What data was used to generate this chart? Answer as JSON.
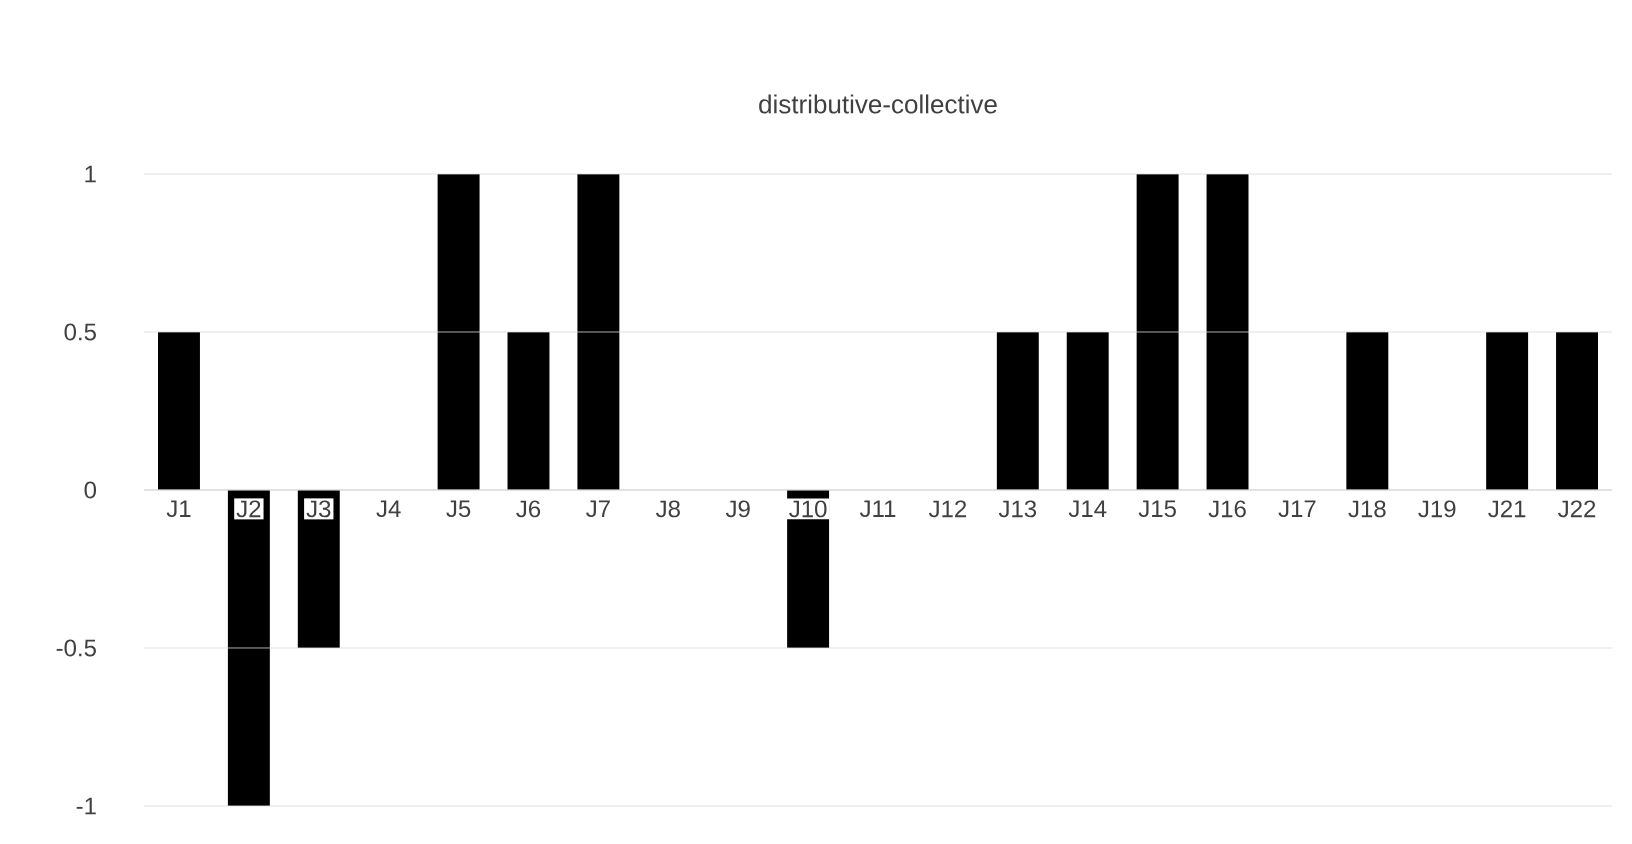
{
  "chart_data": {
    "type": "bar",
    "title": "distributive-collective",
    "categories": [
      "J1",
      "J2",
      "J3",
      "J4",
      "J5",
      "J6",
      "J7",
      "J8",
      "J9",
      "J10",
      "J11",
      "J12",
      "J13",
      "J14",
      "J15",
      "J16",
      "J17",
      "J18",
      "J19",
      "J21",
      "J22"
    ],
    "values": [
      0.5,
      -1,
      -0.5,
      0,
      1,
      0.5,
      1,
      0,
      0,
      -0.5,
      0,
      0,
      0.5,
      0.5,
      1,
      1,
      0,
      0.5,
      0,
      0.5,
      0.5
    ],
    "color": "#000000",
    "ylim": [
      -1,
      1
    ],
    "yticks": [
      -1,
      -0.5,
      0,
      0.5,
      1
    ],
    "grid": "y"
  }
}
